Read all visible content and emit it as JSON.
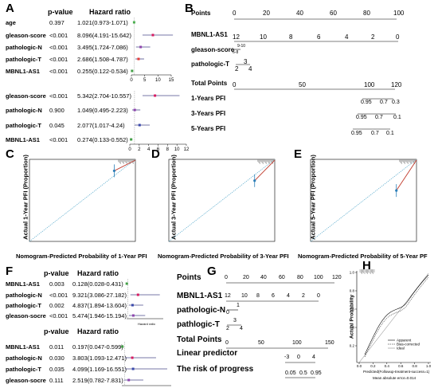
{
  "panel_labels": {
    "a": "A",
    "b": "B",
    "c": "C",
    "d": "D",
    "e": "E",
    "f": "F",
    "g": "G",
    "h": "H"
  },
  "forest_A": {
    "headers": {
      "p": "p-value",
      "hr": "Hazard ratio"
    },
    "univariate": [
      {
        "var": "age",
        "p": "0.397",
        "hr": "1.021(0.973-1.071)",
        "est": 1.021,
        "lo": 0.973,
        "hi": 1.071,
        "color": "#4caf50"
      },
      {
        "var": "gleason-score",
        "p": "<0.001",
        "hr": "8.096(4.191-15.642)",
        "est": 8.096,
        "lo": 4.191,
        "hi": 15.642,
        "color": "#d81b60"
      },
      {
        "var": "pathologic-N",
        "p": "<0.001",
        "hr": "3.495(1.724-7.086)",
        "est": 3.495,
        "lo": 1.724,
        "hi": 7.086,
        "color": "#8e44ad"
      },
      {
        "var": "pathologic-T",
        "p": "<0.001",
        "hr": "2.686(1.508-4.787)",
        "est": 2.686,
        "lo": 1.508,
        "hi": 4.787,
        "color": "#e53935"
      },
      {
        "var": "MBNL1-AS1",
        "p": "<0.001",
        "hr": "0.255(0.122-0.534)",
        "est": 0.255,
        "lo": 0.122,
        "hi": 0.534,
        "color": "#43a047"
      }
    ],
    "univariate_ticks": [
      "0",
      "5",
      "10",
      "15"
    ],
    "multivariate": [
      {
        "var": "gleason-score",
        "p": "<0.001",
        "hr": "5.342(2.704-10.557)",
        "est": 5.342,
        "lo": 2.704,
        "hi": 10.557,
        "color": "#d81b60"
      },
      {
        "var": "pathologic-N",
        "p": "0.900",
        "hr": "1.049(0.495-2.223)",
        "est": 1.049,
        "lo": 0.495,
        "hi": 2.223,
        "color": "#8e44ad"
      },
      {
        "var": "pathologic-T",
        "p": "0.045",
        "hr": "2.077(1.017-4.24)",
        "est": 2.077,
        "lo": 1.017,
        "hi": 4.24,
        "color": "#3949ab"
      },
      {
        "var": "MBNL1-AS1",
        "p": "<0.001",
        "hr": "0.274(0.133-0.552)",
        "est": 0.274,
        "lo": 0.133,
        "hi": 0.552,
        "color": "#43a047"
      }
    ],
    "multivariate_ticks": [
      "0",
      "2",
      "4",
      "6",
      "8",
      "10",
      "12"
    ]
  },
  "nomogram_B": {
    "points_label": "Points",
    "points_ticks": [
      "0",
      "20",
      "40",
      "60",
      "80",
      "100"
    ],
    "mbnl_label": "MBNL1-AS1",
    "mbnl_ticks": [
      "12",
      "10",
      "8",
      "6",
      "4",
      "2",
      "0"
    ],
    "gleason_label": "gleason-score",
    "gleason_ticks": [
      "9-10",
      "6-8"
    ],
    "pt_label": "pathologic-T",
    "pt_ticks": [
      "3",
      "2",
      "4"
    ],
    "total_label": "Total Points",
    "total_ticks": [
      "0",
      "50",
      "100",
      "120"
    ],
    "y1_label": "1-Years PFI",
    "y1_ticks": [
      "0.95",
      "0.7",
      "0.3"
    ],
    "y3_label": "3-Years PFI",
    "y3_ticks": [
      "0.95",
      "0.7",
      "0.1"
    ],
    "y5_label": "5-Years PFI",
    "y5_ticks": [
      "0.95",
      "0.7",
      "0.1"
    ]
  },
  "calibration": {
    "ylabel_c": "Actual 1-Year PFI (Proportion)",
    "xlabel_c": "Nomogram-Predicted Probability of 1-Year PFI",
    "ylabel_d": "Actual 3-Year PFI (Proportion)",
    "xlabel_d": "Nomogram-Predicted Probability of 3-Year PFI",
    "ylabel_e": "Actual 5-Year PFI (Proportion)",
    "xlabel_e": "Nomogram-Predicted Probability of 5-Year PF"
  },
  "forest_F": {
    "headers": {
      "p": "p-value",
      "hr": "Hazard ratio"
    },
    "univariate": [
      {
        "var": "MBNL1-AS1",
        "p": "0.003",
        "hr": "0.128(0.028-0.431)",
        "est": 0.128,
        "lo": 0.028,
        "hi": 0.431,
        "color": "#43a047"
      },
      {
        "var": "pathologic-N",
        "p": "<0.001",
        "hr": "9.321(3.086-27.182)",
        "est": 9.321,
        "lo": 3.086,
        "hi": 27.182,
        "color": "#d81b60"
      },
      {
        "var": "pathologic-T",
        "p": "0.002",
        "hr": "4.837(1.894-13.604)",
        "est": 4.837,
        "lo": 1.894,
        "hi": 13.604,
        "color": "#3949ab"
      },
      {
        "var": "gleason-socre",
        "p": "<0.001",
        "hr": "5.474(1.946-15.194)",
        "est": 5.474,
        "lo": 1.946,
        "hi": 15.194,
        "color": "#8e44ad"
      }
    ],
    "univariate_axis_label": "Hazard ratio",
    "multivariate": [
      {
        "var": "MBNL1-AS1",
        "p": "0.011",
        "hr": "0.197(0.047-0.599)",
        "est": 0.197,
        "lo": 0.047,
        "hi": 0.599,
        "color": "#43a047"
      },
      {
        "var": "pathologic-N",
        "p": "0.030",
        "hr": "3.803(1.093-12.471)",
        "est": 3.803,
        "lo": 1.093,
        "hi": 12.471,
        "color": "#d81b60"
      },
      {
        "var": "pathologic-T",
        "p": "0.035",
        "hr": "4.099(1.169-16.551)",
        "est": 4.099,
        "lo": 1.169,
        "hi": 16.551,
        "color": "#3949ab"
      },
      {
        "var": "gleason-socre",
        "p": "0.111",
        "hr": "2.519(0.782-7.831)",
        "est": 2.519,
        "lo": 0.782,
        "hi": 7.831,
        "color": "#8e44ad"
      }
    ]
  },
  "nomogram_G": {
    "points_label": "Points",
    "points_ticks": [
      "0",
      "20",
      "40",
      "60",
      "80",
      "100",
      "120"
    ],
    "mbnl_label": "MBNL1-AS1",
    "mbnl_ticks": [
      "12",
      "10",
      "8",
      "6",
      "4",
      "2",
      "0"
    ],
    "pn_label": "pathologic-N",
    "pn_ticks": [
      "1",
      "0"
    ],
    "pt_label": "pathlogic-T",
    "pt_ticks": [
      "3",
      "2",
      "4"
    ],
    "total_label": "Total Points",
    "total_ticks": [
      "0",
      "50",
      "100",
      "150"
    ],
    "lp_label": "Linear predictor",
    "lp_ticks": [
      "-3",
      "0",
      "4"
    ],
    "risk_label": "The risk of progress",
    "risk_ticks": [
      "0.05",
      "0.5",
      "0.95"
    ]
  },
  "calibration_H": {
    "ylabel": "Actual Probability",
    "xlabel": "Predicted(Followup-treatment-success=1)",
    "y_ticks": [
      "0.2",
      "0.4",
      "0.6",
      "0.8",
      "1.0"
    ],
    "x_ticks": [
      "0.0",
      "0.2",
      "0.4",
      "0.6",
      "0.8",
      "1.0"
    ],
    "legend": [
      "Apparent",
      "Bias-corrected",
      "Ideal"
    ],
    "footer": "Mean absolute error=0.014"
  },
  "chart_data": [
    {
      "type": "scatter",
      "title": "",
      "x": [
        0.8
      ],
      "y": [
        0.86
      ]
    },
    {
      "type": "scatter",
      "title": "",
      "x": [
        0.81
      ],
      "y": [
        0.74
      ]
    },
    {
      "type": "scatter",
      "title": "",
      "x": [
        0.81
      ],
      "y": [
        0.62
      ]
    }
  ]
}
